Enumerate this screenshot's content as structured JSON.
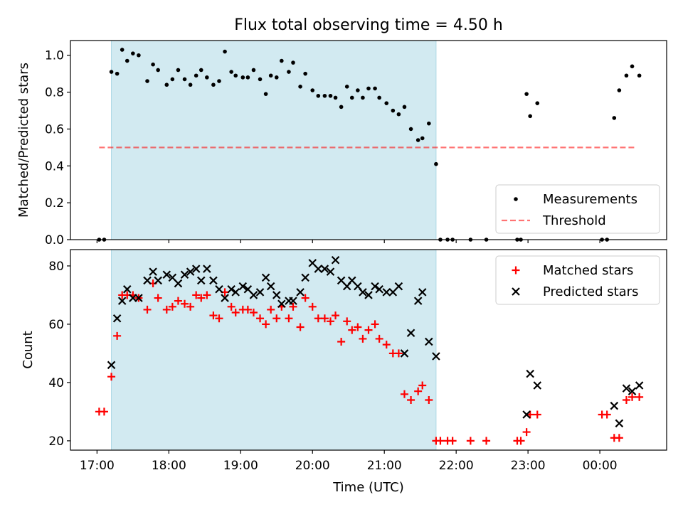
{
  "figure": {
    "title": "Flux total observing time = 4.50 h",
    "xlabel": "Time (UTC)",
    "x_ticks": [
      "17:00",
      "18:00",
      "19:00",
      "20:00",
      "21:00",
      "22:00",
      "23:00",
      "00:00"
    ]
  },
  "colors": {
    "shade": "#add8e6",
    "measurement": "#000000",
    "threshold": "#ff0000",
    "matched": "#ff0000",
    "predicted": "#000000"
  },
  "chart_data": [
    {
      "type": "scatter",
      "ylabel": "Matched/Predicted stars",
      "x_unit": "hours UTC (24+ = after midnight)",
      "xlim": [
        16.63,
        24.93
      ],
      "ylim": [
        0,
        1.08
      ],
      "yticks": [
        "0.0",
        "0.2",
        "0.4",
        "0.6",
        "0.8",
        "1.0"
      ],
      "ytick_values": [
        0,
        0.2,
        0.4,
        0.6,
        0.8,
        1.0
      ],
      "shaded_span": [
        17.2,
        21.72
      ],
      "threshold": {
        "y": 0.5,
        "x": [
          17.03,
          24.5
        ]
      },
      "legend": {
        "position": "lower right",
        "entries": [
          "Measurements",
          "Threshold"
        ]
      },
      "series": [
        {
          "name": "Measurements",
          "x": [
            17.03,
            17.1,
            17.2,
            17.28,
            17.35,
            17.42,
            17.5,
            17.58,
            17.7,
            17.78,
            17.85,
            17.97,
            18.05,
            18.13,
            18.22,
            18.3,
            18.38,
            18.45,
            18.53,
            18.62,
            18.7,
            18.78,
            18.87,
            18.93,
            19.03,
            19.1,
            19.18,
            19.27,
            19.35,
            19.42,
            19.5,
            19.57,
            19.67,
            19.73,
            19.83,
            19.9,
            20.0,
            20.08,
            20.17,
            20.25,
            20.32,
            20.4,
            20.48,
            20.55,
            20.63,
            20.7,
            20.78,
            20.87,
            20.93,
            21.03,
            21.12,
            21.2,
            21.28,
            21.37,
            21.47,
            21.53,
            21.62,
            21.72,
            21.78,
            21.88,
            21.95,
            22.2,
            22.42,
            22.85,
            22.9,
            22.98,
            23.03,
            23.13,
            24.03,
            24.1,
            24.2,
            24.27,
            24.37,
            24.45,
            24.55
          ],
          "y": [
            0,
            0,
            0.91,
            0.9,
            1.03,
            0.97,
            1.01,
            1.0,
            0.86,
            0.95,
            0.92,
            0.84,
            0.87,
            0.92,
            0.87,
            0.84,
            0.89,
            0.92,
            0.88,
            0.84,
            0.86,
            1.02,
            0.91,
            0.89,
            0.88,
            0.88,
            0.92,
            0.87,
            0.79,
            0.89,
            0.88,
            0.97,
            0.91,
            0.96,
            0.83,
            0.9,
            0.81,
            0.78,
            0.78,
            0.78,
            0.77,
            0.72,
            0.83,
            0.77,
            0.81,
            0.77,
            0.82,
            0.82,
            0.77,
            0.74,
            0.7,
            0.68,
            0.72,
            0.6,
            0.54,
            0.55,
            0.63,
            0.41,
            0,
            0,
            0,
            0,
            0,
            0,
            0,
            0.79,
            0.67,
            0.74,
            0,
            0,
            0.66,
            0.81,
            0.89,
            0.94,
            0.89
          ]
        }
      ]
    },
    {
      "type": "scatter",
      "ylabel": "Count",
      "x_unit": "hours UTC (24+ = after midnight)",
      "xlim": [
        16.63,
        24.93
      ],
      "ylim": [
        16.8,
        85.6
      ],
      "yticks": [
        "20",
        "40",
        "60",
        "80"
      ],
      "ytick_values": [
        20,
        40,
        60,
        80
      ],
      "shaded_span": [
        17.2,
        21.72
      ],
      "legend": {
        "position": "upper right",
        "entries": [
          "Matched stars",
          "Predicted stars"
        ]
      },
      "series": [
        {
          "name": "Matched stars",
          "marker": "plus",
          "x": [
            17.03,
            17.1,
            17.2,
            17.28,
            17.35,
            17.42,
            17.5,
            17.58,
            17.7,
            17.78,
            17.85,
            17.97,
            18.05,
            18.13,
            18.22,
            18.3,
            18.38,
            18.45,
            18.53,
            18.62,
            18.7,
            18.78,
            18.87,
            18.93,
            19.03,
            19.1,
            19.18,
            19.27,
            19.35,
            19.42,
            19.5,
            19.57,
            19.67,
            19.73,
            19.83,
            19.9,
            20.0,
            20.08,
            20.17,
            20.25,
            20.32,
            20.4,
            20.48,
            20.55,
            20.63,
            20.7,
            20.78,
            20.87,
            20.93,
            21.03,
            21.12,
            21.2,
            21.28,
            21.37,
            21.47,
            21.53,
            21.62,
            21.72,
            21.78,
            21.88,
            21.95,
            22.2,
            22.42,
            22.85,
            22.9,
            22.98,
            23.03,
            23.13,
            24.03,
            24.1,
            24.2,
            24.27,
            24.37,
            24.45,
            24.55
          ],
          "y": [
            30,
            30,
            42,
            56,
            70,
            70,
            70,
            69,
            65,
            74,
            69,
            65,
            66,
            68,
            67,
            66,
            70,
            69,
            70,
            63,
            62,
            71,
            66,
            64,
            65,
            65,
            64,
            62,
            60,
            65,
            62,
            66,
            62,
            66,
            59,
            69,
            66,
            62,
            62,
            61,
            63,
            54,
            61,
            58,
            59,
            55,
            58,
            60,
            55,
            53,
            50,
            50,
            36,
            34,
            37,
            39,
            34,
            20,
            20,
            20,
            20,
            20,
            20,
            20,
            20,
            23,
            29,
            29,
            29,
            29,
            21,
            21,
            34,
            35,
            35
          ]
        },
        {
          "name": "Predicted stars",
          "marker": "x",
          "x": [
            17.2,
            17.28,
            17.35,
            17.42,
            17.5,
            17.58,
            17.7,
            17.78,
            17.85,
            17.97,
            18.05,
            18.13,
            18.22,
            18.3,
            18.38,
            18.45,
            18.53,
            18.62,
            18.7,
            18.78,
            18.87,
            18.93,
            19.03,
            19.1,
            19.18,
            19.27,
            19.35,
            19.42,
            19.5,
            19.57,
            19.67,
            19.73,
            19.83,
            19.9,
            20.0,
            20.08,
            20.17,
            20.25,
            20.32,
            20.4,
            20.48,
            20.55,
            20.63,
            20.7,
            20.78,
            20.87,
            20.93,
            21.03,
            21.12,
            21.2,
            21.28,
            21.37,
            21.47,
            21.53,
            21.62,
            21.72,
            22.98,
            23.03,
            23.13,
            24.2,
            24.27,
            24.37,
            24.45,
            24.55
          ],
          "y": [
            46,
            62,
            68,
            72,
            69,
            69,
            75,
            78,
            75,
            77,
            76,
            74,
            77,
            78,
            79,
            75,
            79,
            75,
            72,
            69,
            72,
            71,
            73,
            72,
            70,
            71,
            76,
            73,
            70,
            67,
            68,
            68,
            71,
            76,
            81,
            79,
            79,
            78,
            82,
            75,
            73,
            75,
            73,
            71,
            70,
            73,
            72,
            71,
            71,
            73,
            50,
            57,
            68,
            71,
            54,
            49,
            29,
            43,
            39,
            32,
            26,
            38,
            37,
            39
          ]
        }
      ]
    }
  ]
}
